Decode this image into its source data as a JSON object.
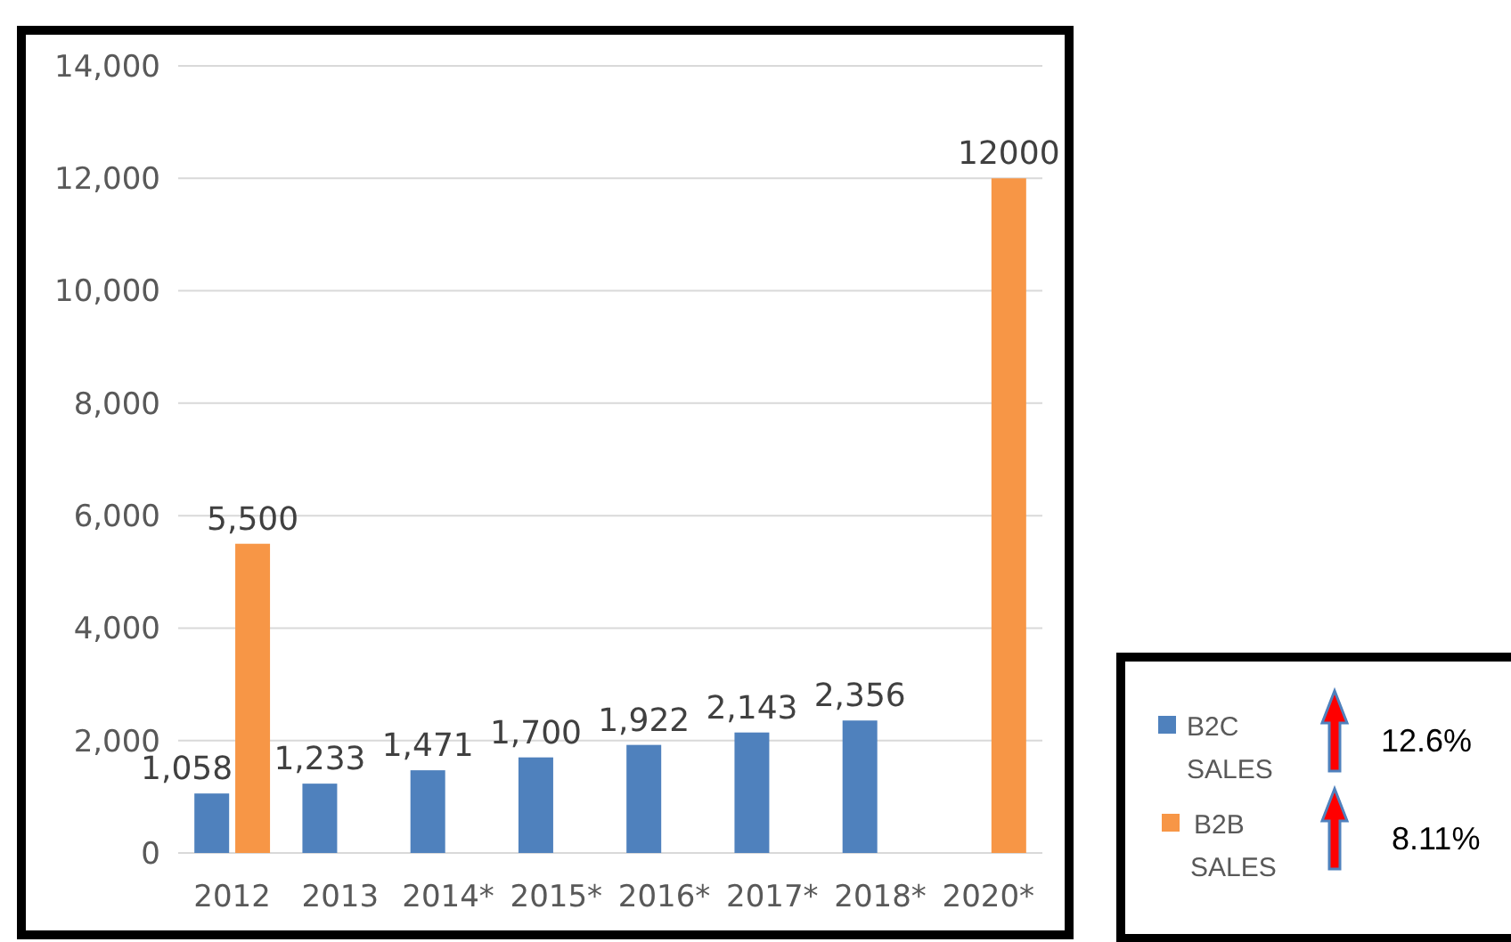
{
  "chart_data": {
    "type": "bar",
    "categories": [
      "2012",
      "2013",
      "2014*",
      "2015*",
      "2016*",
      "2017*",
      "2018*",
      "2020*"
    ],
    "series": [
      {
        "name": "B2C SALES",
        "color": "#4f81bd",
        "values": [
          1058,
          1233,
          1471,
          1700,
          1922,
          2143,
          2356,
          null
        ],
        "value_labels": [
          "1,058",
          "1,233",
          "1,471",
          "1,700",
          "1,922",
          "2,143",
          "2,356",
          null
        ]
      },
      {
        "name": "B2B SALES",
        "color": "#f79646",
        "values": [
          5500,
          null,
          null,
          null,
          null,
          null,
          null,
          12000
        ],
        "value_labels": [
          "5,500",
          null,
          null,
          null,
          null,
          null,
          null,
          "12000"
        ]
      }
    ],
    "ylim": [
      0,
      14000
    ],
    "yticks": [
      {
        "value": 0,
        "label": "0"
      },
      {
        "value": 2000,
        "label": "2,000"
      },
      {
        "value": 4000,
        "label": "4,000"
      },
      {
        "value": 6000,
        "label": "6,000"
      },
      {
        "value": 8000,
        "label": "8,000"
      },
      {
        "value": 10000,
        "label": "10,000"
      },
      {
        "value": 12000,
        "label": "12,000"
      },
      {
        "value": 14000,
        "label": "14,000"
      }
    ],
    "grid": "y",
    "legend": "bottom right",
    "annotations": [
      "12.6%",
      "8.11%"
    ]
  }
}
